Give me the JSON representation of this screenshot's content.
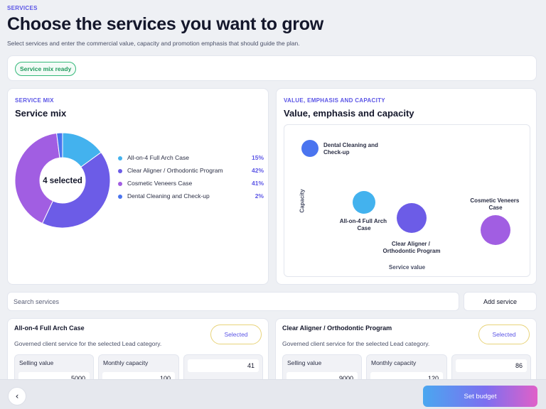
{
  "header": {
    "eyebrow": "SERVICES",
    "title": "Choose the services you want to grow",
    "subtitle": "Select services and enter the commercial value, capacity and promotion emphasis that should guide the plan."
  },
  "status": {
    "pill": "Service mix ready"
  },
  "mix": {
    "eyebrow": "SERVICE MIX",
    "title": "Service mix",
    "center_label": "4 selected",
    "items": [
      {
        "label": "All-on-4 Full Arch Case",
        "pct": "15%",
        "value": 15,
        "color": "#43b2ee"
      },
      {
        "label": "Clear Aligner / Orthodontic Program",
        "pct": "42%",
        "value": 42,
        "color": "#6c5ce7"
      },
      {
        "label": "Cosmetic Veneers Case",
        "pct": "41%",
        "value": 41,
        "color": "#a15ee2"
      },
      {
        "label": "Dental Cleaning and Check-up",
        "pct": "2%",
        "value": 2,
        "color": "#4a74ef"
      }
    ]
  },
  "value_chart": {
    "eyebrow": "VALUE, EMPHASIS AND CAPACITY",
    "title": "Value, emphasis and capacity",
    "xlabel": "Service value",
    "ylabel": "Capacity",
    "bubbles": [
      {
        "label": "Dental Cleaning and Check-up",
        "color": "#4a74ef"
      },
      {
        "label": "All-on-4 Full Arch Case",
        "color": "#43b2ee"
      },
      {
        "label": "Clear Aligner / Orthodontic Program",
        "color": "#6c5ce7"
      },
      {
        "label": "Cosmetic Veneers Case",
        "color": "#a15ee2"
      }
    ]
  },
  "search": {
    "placeholder": "Search services"
  },
  "add_service": "Add service",
  "services": [
    {
      "title": "All-on-4 Full Arch Case",
      "description": "Governed client service for the selected Lead category.",
      "selected_label": "Selected",
      "selling_value_label": "Selling value",
      "selling_value": "5000",
      "capacity_label": "Monthly capacity",
      "capacity": "100",
      "emphasis": "41"
    },
    {
      "title": "Clear Aligner / Orthodontic Program",
      "description": "Governed client service for the selected Lead category.",
      "selected_label": "Selected",
      "selling_value_label": "Selling value",
      "selling_value": "9000",
      "capacity_label": "Monthly capacity",
      "capacity": "120",
      "emphasis": "86"
    }
  ],
  "footer": {
    "back": "‹",
    "set_budget": "Set budget"
  }
}
